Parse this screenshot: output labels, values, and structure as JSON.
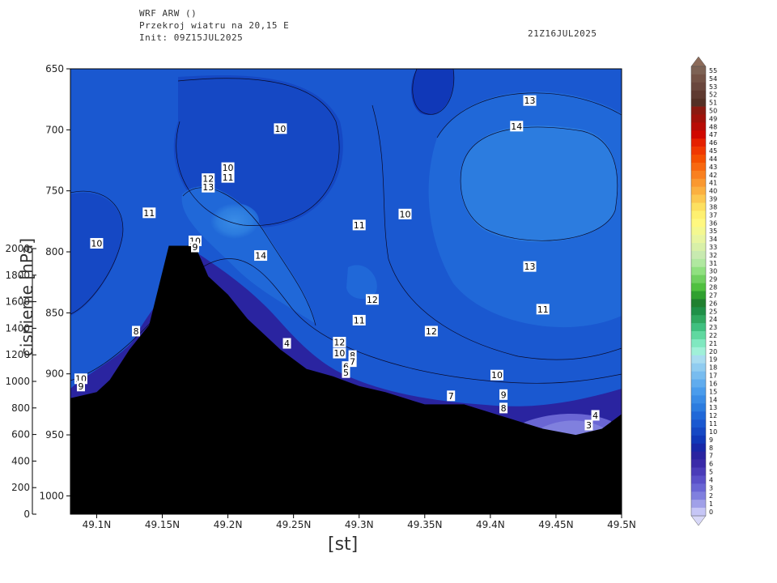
{
  "header": {
    "model": "WRF ARW ()",
    "product": "Przekroj wiatru na 20,15 E",
    "init": "Init: 09Z15JUL2025",
    "valid": "21Z16JUL2025"
  },
  "chart_data": {
    "type": "contour",
    "x_ticks": [
      "49.1N",
      "49.15N",
      "49.2N",
      "49.25N",
      "49.3N",
      "49.35N",
      "49.4N",
      "49.45N",
      "49.5N"
    ],
    "x_tick_values": [
      49.1,
      49.15,
      49.2,
      49.25,
      49.3,
      49.35,
      49.4,
      49.45,
      49.5
    ],
    "xlim": [
      49.08,
      49.5
    ],
    "xlabel": "[st]",
    "y_ticks": [
      "650",
      "700",
      "750",
      "800",
      "850",
      "900",
      "950",
      "1000"
    ],
    "y_tick_values": [
      650,
      700,
      750,
      800,
      850,
      900,
      950,
      1000
    ],
    "ylim": [
      650,
      1015
    ],
    "y2_ticks": [
      "2000",
      "1800",
      "1600",
      "1400",
      "1200",
      "1000",
      "800",
      "600",
      "400",
      "200",
      "0"
    ],
    "y2_tick_values": [
      2000,
      1800,
      1600,
      1400,
      1200,
      1000,
      800,
      600,
      400,
      200,
      0
    ],
    "y2_label": "cisnienie [hPa]",
    "terrain": [
      {
        "lat": 49.08,
        "p": 920
      },
      {
        "lat": 49.1,
        "p": 915
      },
      {
        "lat": 49.11,
        "p": 905
      },
      {
        "lat": 49.125,
        "p": 880
      },
      {
        "lat": 49.14,
        "p": 860
      },
      {
        "lat": 49.155,
        "p": 795
      },
      {
        "lat": 49.175,
        "p": 795
      },
      {
        "lat": 49.185,
        "p": 820
      },
      {
        "lat": 49.2,
        "p": 835
      },
      {
        "lat": 49.215,
        "p": 855
      },
      {
        "lat": 49.24,
        "p": 880
      },
      {
        "lat": 49.26,
        "p": 896
      },
      {
        "lat": 49.28,
        "p": 902
      },
      {
        "lat": 49.3,
        "p": 910
      },
      {
        "lat": 49.32,
        "p": 915
      },
      {
        "lat": 49.35,
        "p": 925
      },
      {
        "lat": 49.38,
        "p": 925
      },
      {
        "lat": 49.41,
        "p": 935
      },
      {
        "lat": 49.44,
        "p": 945
      },
      {
        "lat": 49.465,
        "p": 950
      },
      {
        "lat": 49.485,
        "p": 945
      },
      {
        "lat": 49.5,
        "p": 933
      }
    ],
    "contour_labels": [
      {
        "text": "13",
        "lat": 49.43,
        "p": 676
      },
      {
        "text": "14",
        "lat": 49.42,
        "p": 697
      },
      {
        "text": "10",
        "lat": 49.24,
        "p": 699
      },
      {
        "text": "10",
        "lat": 49.2,
        "p": 731
      },
      {
        "text": "11",
        "lat": 49.2,
        "p": 739
      },
      {
        "text": "12",
        "lat": 49.185,
        "p": 740
      },
      {
        "text": "13",
        "lat": 49.185,
        "p": 747
      },
      {
        "text": "11",
        "lat": 49.14,
        "p": 768
      },
      {
        "text": "10",
        "lat": 49.335,
        "p": 769
      },
      {
        "text": "11",
        "lat": 49.3,
        "p": 778
      },
      {
        "text": "10",
        "lat": 49.175,
        "p": 791
      },
      {
        "text": "9",
        "lat": 49.175,
        "p": 796
      },
      {
        "text": "10",
        "lat": 49.1,
        "p": 793
      },
      {
        "text": "14",
        "lat": 49.225,
        "p": 803
      },
      {
        "text": "13",
        "lat": 49.43,
        "p": 812
      },
      {
        "text": "12",
        "lat": 49.31,
        "p": 839
      },
      {
        "text": "11",
        "lat": 49.44,
        "p": 847
      },
      {
        "text": "11",
        "lat": 49.3,
        "p": 856
      },
      {
        "text": "12",
        "lat": 49.355,
        "p": 865
      },
      {
        "text": "8",
        "lat": 49.13,
        "p": 865
      },
      {
        "text": "4",
        "lat": 49.245,
        "p": 875
      },
      {
        "text": "12",
        "lat": 49.285,
        "p": 874
      },
      {
        "text": "10",
        "lat": 49.285,
        "p": 883
      },
      {
        "text": "8",
        "lat": 49.295,
        "p": 885
      },
      {
        "text": "7",
        "lat": 49.295,
        "p": 890
      },
      {
        "text": "6",
        "lat": 49.29,
        "p": 894
      },
      {
        "text": "5",
        "lat": 49.29,
        "p": 899
      },
      {
        "text": "10",
        "lat": 49.405,
        "p": 901
      },
      {
        "text": "10",
        "lat": 49.088,
        "p": 904
      },
      {
        "text": "9",
        "lat": 49.088,
        "p": 910
      },
      {
        "text": "9",
        "lat": 49.41,
        "p": 917
      },
      {
        "text": "7",
        "lat": 49.37,
        "p": 918
      },
      {
        "text": "8",
        "lat": 49.41,
        "p": 928
      },
      {
        "text": "4",
        "lat": 49.48,
        "p": 934
      },
      {
        "text": "3",
        "lat": 49.475,
        "p": 942
      }
    ],
    "colorbar": {
      "labels": [
        "55",
        "54",
        "53",
        "52",
        "51",
        "50",
        "49",
        "48",
        "47",
        "46",
        "45",
        "44",
        "43",
        "42",
        "41",
        "40",
        "39",
        "38",
        "37",
        "36",
        "35",
        "34",
        "33",
        "32",
        "31",
        "30",
        "29",
        "28",
        "27",
        "26",
        "25",
        "24",
        "23",
        "22",
        "21",
        "20",
        "19",
        "18",
        "17",
        "16",
        "15",
        "14",
        "13",
        "12",
        "11",
        "10",
        "9",
        "8",
        "7",
        "6",
        "5",
        "4",
        "3",
        "2",
        "1",
        "0"
      ],
      "colors": [
        "#7d6254",
        "#745346",
        "#6a473d",
        "#5f3a30",
        "#543025",
        "#8a1a10",
        "#a0120a",
        "#b80c06",
        "#d00800",
        "#e52000",
        "#f03800",
        "#f55000",
        "#f86810",
        "#f98020",
        "#fa9830",
        "#fbb040",
        "#fcc850",
        "#fde060",
        "#fef070",
        "#fff880",
        "#f4f890",
        "#e8f5a0",
        "#d8f0a8",
        "#c8eab0",
        "#b0e8a0",
        "#90e080",
        "#70d060",
        "#50c040",
        "#30a030",
        "#208030",
        "#209048",
        "#30a860",
        "#40c080",
        "#60d8a0",
        "#80e8c0",
        "#a0f0d8",
        "#a8dcf0",
        "#90ccf0",
        "#78bcef",
        "#60acee",
        "#4a9cec",
        "#3a8ce6",
        "#2c7cdf",
        "#2068d8",
        "#1a58d0",
        "#1548c4",
        "#1038b8",
        "#1828a8",
        "#2a24a0",
        "#3a2aa8",
        "#4a3cb8",
        "#5a50c8",
        "#6a66d4",
        "#8080de",
        "#a0a0e8",
        "#c6c6f6"
      ],
      "arrow_top_color": "#8c6b5a",
      "arrow_bottom_color": "#d8d8f8"
    }
  }
}
